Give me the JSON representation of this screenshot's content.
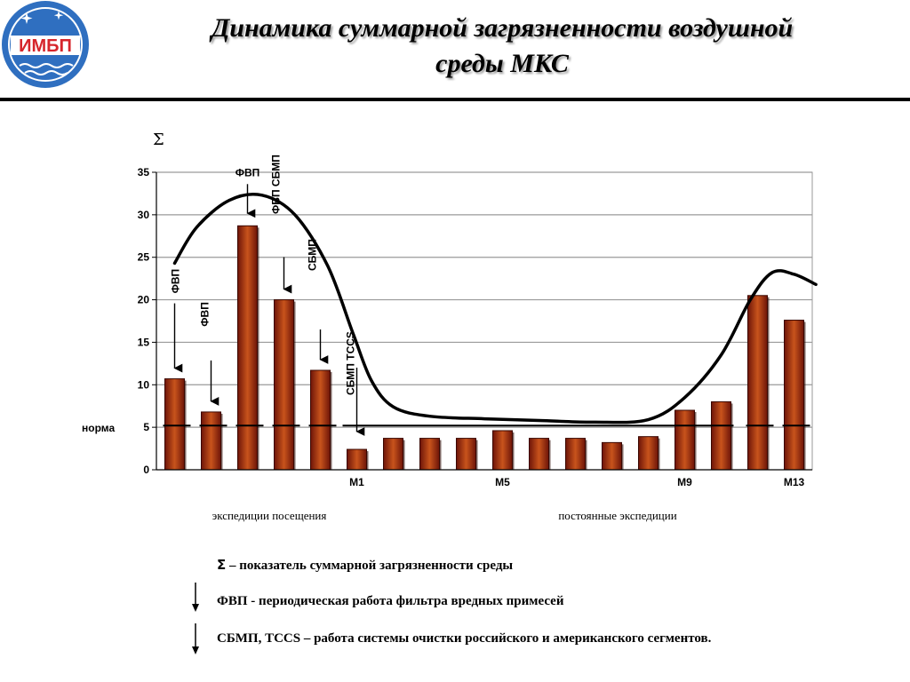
{
  "logo": {
    "text": "ИМБП",
    "colors": {
      "circle": "#2f6fc0",
      "text": "#d6252b",
      "ring": "#ffffff"
    }
  },
  "title": {
    "line1": "Динамика суммарной загрязненности воздушной",
    "line2": "среды МКС"
  },
  "chart_data": {
    "type": "bar",
    "y_symbol": "Σ",
    "ylim": [
      0,
      35
    ],
    "yticks": [
      0,
      5,
      10,
      15,
      20,
      25,
      30,
      35
    ],
    "grid": true,
    "values": [
      10.7,
      6.8,
      28.7,
      20.0,
      11.7,
      2.4,
      3.7,
      3.7,
      3.7,
      4.6,
      3.7,
      3.7,
      3.2,
      3.9,
      7.0,
      8.0,
      20.5,
      17.6
    ],
    "x_tick_labels": [
      {
        "index": 5,
        "label": "М1"
      },
      {
        "index": 9,
        "label": "М5"
      },
      {
        "index": 14,
        "label": "М9"
      },
      {
        "index": 17,
        "label": "М13"
      }
    ],
    "norm": {
      "label": "норма",
      "value": 5.2
    },
    "trend_curve": [
      [
        0,
        24.3
      ],
      [
        0.6,
        28.5
      ],
      [
        1.5,
        31.7
      ],
      [
        2.4,
        32.3
      ],
      [
        3.3,
        30.0
      ],
      [
        4.2,
        24.0
      ],
      [
        4.9,
        16.0
      ],
      [
        5.4,
        10.5
      ],
      [
        6.0,
        7.4
      ],
      [
        7.0,
        6.3
      ],
      [
        8.5,
        6.0
      ],
      [
        10.0,
        5.8
      ],
      [
        11.5,
        5.6
      ],
      [
        13.0,
        5.9
      ],
      [
        14.0,
        8.5
      ],
      [
        15.0,
        13.5
      ],
      [
        15.8,
        20.0
      ],
      [
        16.4,
        23.2
      ],
      [
        17.0,
        23.0
      ],
      [
        17.6,
        21.8
      ]
    ],
    "annotations": [
      {
        "bar": 0,
        "label": "ФВП"
      },
      {
        "bar": 1,
        "label": "ФВП"
      },
      {
        "bar": 2,
        "label": "ФВП"
      },
      {
        "bar": 3,
        "label": "ФВП СБМП"
      },
      {
        "bar": 4,
        "label": "СБМП"
      },
      {
        "bar": 5,
        "label": "СБМП TCCS"
      }
    ],
    "group_labels": [
      "экспедиции  посещения",
      "постоянные  экспедиции"
    ],
    "colors": {
      "bar_light": "#c8541c",
      "bar_dark": "#6e1408",
      "bar_border": "#3a0700",
      "grid": "#9a9a9a",
      "curve": "#000000",
      "plot_bg": "#ffffff"
    }
  },
  "legend": [
    {
      "symbol": "Σ",
      "text": " – показатель  суммарной  загрязненности  среды"
    },
    {
      "symbol": "",
      "text": "ФВП  -  периодическая  работа  фильтра  вредных  примесей"
    },
    {
      "symbol": "",
      "text": "СБМП, TCCS – работа  системы  очистки  российского  и  американского  сегментов."
    }
  ]
}
